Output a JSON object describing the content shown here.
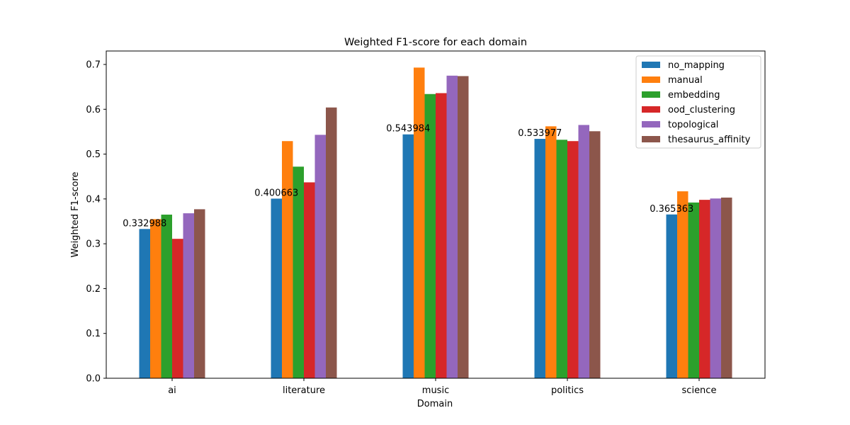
{
  "chart_data": {
    "type": "bar",
    "title": "Weighted F1-score for each domain",
    "xlabel": "Domain",
    "ylabel": "Weighted F1-score",
    "ylim": [
      0,
      0.73
    ],
    "yticks": [
      0.0,
      0.1,
      0.2,
      0.3,
      0.4,
      0.5,
      0.6,
      0.7
    ],
    "ytick_labels": [
      "0.0",
      "0.1",
      "0.2",
      "0.3",
      "0.4",
      "0.5",
      "0.6",
      "0.7"
    ],
    "categories": [
      "ai",
      "literature",
      "music",
      "politics",
      "science"
    ],
    "legend_position": "top-right",
    "grid": false,
    "series": [
      {
        "name": "no_mapping",
        "color": "#1f77b4",
        "values": [
          0.332988,
          0.400663,
          0.543984,
          0.533977,
          0.365363
        ]
      },
      {
        "name": "manual",
        "color": "#ff7f0e",
        "values": [
          0.355,
          0.529,
          0.693,
          0.562,
          0.417
        ]
      },
      {
        "name": "embedding",
        "color": "#2ca02c",
        "values": [
          0.365,
          0.472,
          0.634,
          0.532,
          0.392
        ]
      },
      {
        "name": "ood_clustering",
        "color": "#d62728",
        "values": [
          0.311,
          0.437,
          0.636,
          0.529,
          0.398
        ]
      },
      {
        "name": "topological",
        "color": "#9467bd",
        "values": [
          0.368,
          0.543,
          0.675,
          0.565,
          0.401
        ]
      },
      {
        "name": "thesaurus_affinity",
        "color": "#8c564b",
        "values": [
          0.377,
          0.604,
          0.674,
          0.551,
          0.403
        ]
      }
    ],
    "data_labels": [
      "0.332988",
      "0.400663",
      "0.543984",
      "0.533977",
      "0.365363"
    ]
  }
}
